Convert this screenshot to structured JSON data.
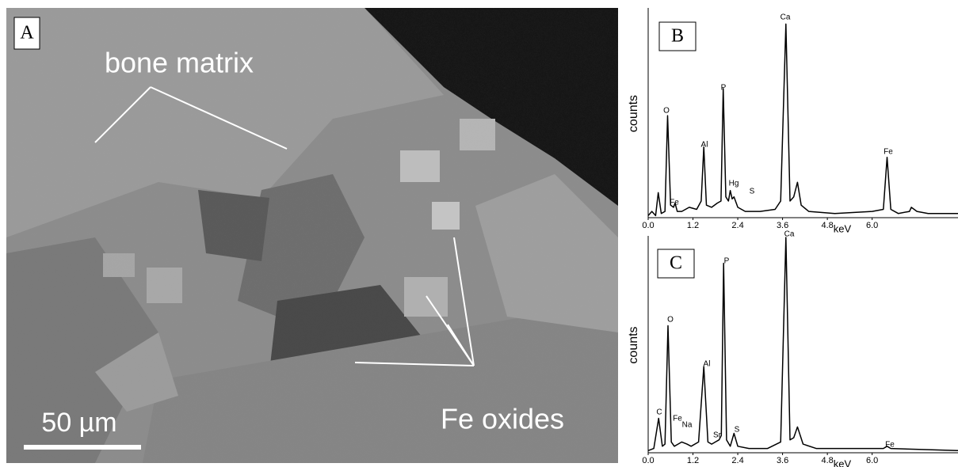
{
  "image_panel": {
    "label": "A",
    "annotations": [
      "bone matrix",
      "Fe oxides"
    ],
    "scale_bar": "50 µm"
  },
  "chart_data": [
    {
      "type": "line",
      "panel_label": "B",
      "y_label": "counts",
      "x_label": "keV",
      "color": "#000000",
      "x": [
        0,
        0.1,
        0.2,
        0.27,
        0.35,
        0.45,
        0.52,
        0.6,
        0.68,
        0.72,
        0.78,
        0.9,
        1.1,
        1.3,
        1.42,
        1.49,
        1.56,
        1.7,
        1.85,
        1.95,
        2.01,
        2.08,
        2.15,
        2.2,
        2.25,
        2.3,
        2.4,
        2.6,
        3.0,
        3.4,
        3.55,
        3.69,
        3.8,
        3.9,
        4.0,
        4.1,
        4.3,
        5.0,
        6.0,
        6.3,
        6.4,
        6.5,
        6.7,
        7.0,
        7.05,
        7.2,
        7.5,
        8.3
      ],
      "values": [
        1,
        3,
        1,
        12,
        2,
        3,
        49,
        6,
        5,
        7,
        3,
        3,
        5,
        4,
        8,
        34,
        6,
        5,
        7,
        8,
        62,
        10,
        8,
        13,
        9,
        10,
        5,
        3,
        3,
        4,
        8,
        93,
        8,
        10,
        17,
        6,
        3,
        2,
        3,
        4,
        29,
        4,
        2,
        3,
        5,
        3,
        2,
        2
      ],
      "xlim": [
        0,
        8.3
      ],
      "ylim": [
        0,
        100
      ],
      "xticks": [
        {
          "value": 0,
          "label": "0.0"
        },
        1.2,
        2.4,
        3.6,
        4.8,
        {
          "value": 6,
          "label": "6.0"
        }
      ],
      "peak_labels": [
        "O",
        "Fe",
        "Al",
        "P",
        "Hg",
        "S",
        "Ca",
        "Fe"
      ]
    },
    {
      "type": "line",
      "panel_label": "C",
      "y_label": "counts",
      "x_label": "keV",
      "color": "#000000",
      "x": [
        0,
        0.15,
        0.28,
        0.38,
        0.45,
        0.53,
        0.62,
        0.7,
        0.8,
        0.9,
        1.04,
        1.15,
        1.35,
        1.49,
        1.6,
        1.7,
        1.8,
        1.9,
        1.96,
        2.02,
        2.1,
        2.2,
        2.3,
        2.4,
        2.7,
        3.2,
        3.55,
        3.69,
        3.8,
        3.9,
        4.0,
        4.15,
        4.5,
        5.5,
        6.3,
        6.4,
        6.5,
        8.3
      ],
      "values": [
        1,
        2,
        16,
        3,
        4,
        59,
        5,
        3,
        4,
        5,
        4,
        3,
        5,
        40,
        5,
        4,
        5,
        6,
        8,
        88,
        6,
        3,
        9,
        3,
        2,
        2,
        5,
        100,
        6,
        7,
        12,
        4,
        2,
        2,
        2,
        3,
        2,
        1
      ],
      "xlim": [
        0,
        8.3
      ],
      "ylim": [
        0,
        100
      ],
      "xticks": [
        {
          "value": 0,
          "label": "0.0"
        },
        1.2,
        2.4,
        3.6,
        4.8,
        {
          "value": 6,
          "label": "6.0"
        }
      ],
      "peak_labels": [
        "Ca",
        "P",
        "O",
        "C",
        "Fe",
        "Na",
        "Al",
        "Sr",
        "S",
        "Fe"
      ]
    }
  ]
}
